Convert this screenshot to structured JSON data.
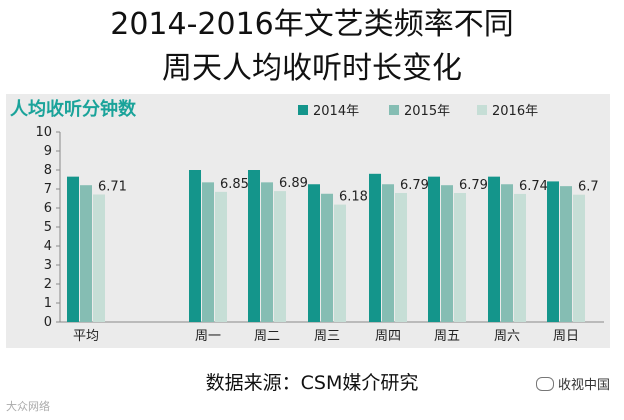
{
  "title_line1": "2014-2016年文艺类频率不同",
  "title_line2": "周天人均收听时长变化",
  "source": "数据来源：CSM媒介研究",
  "watermark_right": "收视中国",
  "watermark_left": "大众网络",
  "colors": {
    "s2014": "#14958b",
    "s2015": "#85bdb3",
    "s2016": "#c6ded6",
    "label": "#1aa39a"
  },
  "chart_data": {
    "type": "bar",
    "ylabel": "人均收听分钟数",
    "ylim": [
      0,
      10
    ],
    "yticks": [
      0,
      1,
      2,
      3,
      4,
      5,
      6,
      7,
      8,
      9,
      10
    ],
    "categories": [
      "平均",
      "周一",
      "周二",
      "周三",
      "周四",
      "周五",
      "周六",
      "周日"
    ],
    "series": [
      {
        "name": "2014年",
        "values": [
          7.65,
          8.0,
          8.0,
          7.25,
          7.8,
          7.65,
          7.65,
          7.4
        ]
      },
      {
        "name": "2015年",
        "values": [
          7.2,
          7.35,
          7.35,
          6.75,
          7.25,
          7.2,
          7.25,
          7.15
        ]
      },
      {
        "name": "2016年",
        "values": [
          6.71,
          6.85,
          6.89,
          6.18,
          6.79,
          6.79,
          6.74,
          6.7
        ]
      }
    ],
    "data_labels": [
      "6.71",
      "6.85",
      "6.89",
      "6.18",
      "6.79",
      "6.79",
      "6.74",
      "6.7"
    ],
    "legend_position": "top-right"
  }
}
